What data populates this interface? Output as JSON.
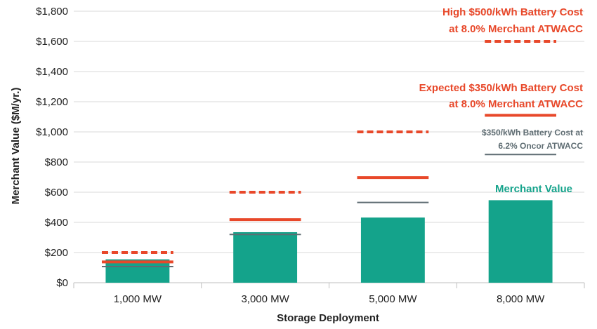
{
  "chart_data": {
    "type": "bar",
    "title": "",
    "xlabel": "Storage Deployment",
    "ylabel": "Merchant Value ($M/yr.)",
    "ylim": [
      0,
      1800
    ],
    "yticks": [
      0,
      200,
      400,
      600,
      800,
      1000,
      1200,
      1400,
      1600,
      1800
    ],
    "ytick_labels": [
      "$0",
      "$200",
      "$400",
      "$600",
      "$800",
      "$1,000",
      "$1,200",
      "$1,400",
      "$1,600",
      "$1,800"
    ],
    "categories": [
      "1,000 MW",
      "3,000 MW",
      "5,000 MW",
      "8,000 MW"
    ],
    "grid": true,
    "series": [
      {
        "name": "Merchant Value",
        "kind": "bar",
        "color": "#14a38b",
        "values": [
          155,
          335,
          432,
          547
        ]
      },
      {
        "name": "High $500/kWh Battery Cost at 8.0% Merchant ATWACC",
        "kind": "dashed-line",
        "color": "#e8482a",
        "values": [
          200,
          600,
          1000,
          1600
        ]
      },
      {
        "name": "Expected $350/kWh Battery Cost at 8.0% Merchant ATWACC",
        "kind": "line",
        "color": "#e8482a",
        "values": [
          138,
          418,
          697,
          1110
        ]
      },
      {
        "name": "$350/kWh Battery Cost at 6.2% Oncor ATWACC",
        "kind": "line",
        "color": "#5f6d73",
        "values": [
          107,
          320,
          532,
          850
        ]
      }
    ],
    "annotations": [
      {
        "lines": [
          "High $500/kWh Battery Cost",
          "at 8.0% Merchant  ATWACC"
        ],
        "style": "red"
      },
      {
        "lines": [
          "Expected $350/kWh Battery Cost",
          "at 8.0% Merchant ATWACC"
        ],
        "style": "red"
      },
      {
        "lines": [
          "$350/kWh Battery Cost at",
          "6.2% Oncor ATWACC"
        ],
        "style": "gray"
      },
      {
        "lines": [
          "Merchant Value"
        ],
        "style": "green"
      }
    ]
  }
}
